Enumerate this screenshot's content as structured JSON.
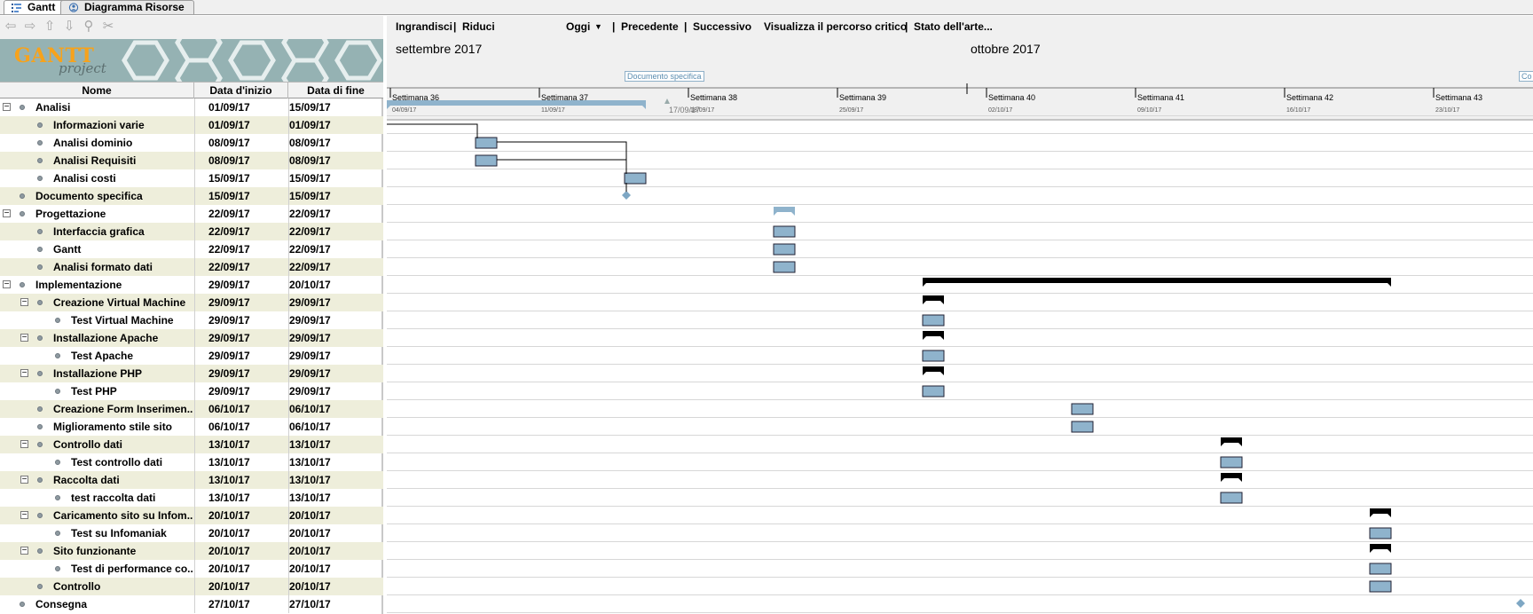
{
  "tabs": [
    {
      "label": "Gantt",
      "icon": "gantt-icon",
      "active": true
    },
    {
      "label": "Diagramma Risorse",
      "icon": "resources-icon",
      "active": false
    }
  ],
  "nav_toolbar": [
    "back-icon",
    "forward-icon",
    "up-icon",
    "down-icon",
    "link-icon",
    "unlink-icon"
  ],
  "logo": {
    "main": "GANTT",
    "sub": "project"
  },
  "columns": {
    "name": "Nome",
    "start": "Data d'inizio",
    "end": "Data di fine"
  },
  "chart_toolbar": {
    "zoom_in": "Ingrandisci",
    "zoom_out": "Riduci",
    "today": "Oggi",
    "previous": "Precedente",
    "next": "Successivo",
    "critical_path": "Visualizza il percorso critico",
    "baseline": "Stato dell'arte...",
    "separator": "|"
  },
  "timeline": {
    "months": [
      "settembre 2017",
      "ottobre 2017"
    ],
    "weeks": [
      {
        "label": "Settimana  36",
        "date": "04/09/17"
      },
      {
        "label": "Settimana  37",
        "date": "11/09/17"
      },
      {
        "label": "Settimana  38",
        "date": "18/09/17"
      },
      {
        "label": "Settimana  39",
        "date": "25/09/17"
      },
      {
        "label": "Settimana  40",
        "date": "02/10/17"
      },
      {
        "label": "Settimana  41",
        "date": "09/10/17"
      },
      {
        "label": "Settimana  42",
        "date": "16/10/17"
      },
      {
        "label": "Settimana  43",
        "date": "23/10/17"
      }
    ],
    "annotations": [
      "Documento specifica",
      "Co"
    ],
    "marker_date": "17/09/17"
  },
  "tasks": [
    {
      "name": "Analisi",
      "start": "01/09/17",
      "end": "15/09/17",
      "level": 0,
      "kind": "summary"
    },
    {
      "name": "Informazioni varie",
      "start": "01/09/17",
      "end": "01/09/17",
      "level": 1,
      "kind": "task"
    },
    {
      "name": "Analisi dominio",
      "start": "08/09/17",
      "end": "08/09/17",
      "level": 1,
      "kind": "task"
    },
    {
      "name": "Analisi Requisiti",
      "start": "08/09/17",
      "end": "08/09/17",
      "level": 1,
      "kind": "task"
    },
    {
      "name": "Analisi costi",
      "start": "15/09/17",
      "end": "15/09/17",
      "level": 1,
      "kind": "task"
    },
    {
      "name": "Documento specifica",
      "start": "15/09/17",
      "end": "15/09/17",
      "level": 0,
      "kind": "milestone"
    },
    {
      "name": "Progettazione",
      "start": "22/09/17",
      "end": "22/09/17",
      "level": 0,
      "kind": "summary"
    },
    {
      "name": "Interfaccia grafica",
      "start": "22/09/17",
      "end": "22/09/17",
      "level": 1,
      "kind": "task"
    },
    {
      "name": "Gantt",
      "start": "22/09/17",
      "end": "22/09/17",
      "level": 1,
      "kind": "task"
    },
    {
      "name": "Analisi formato dati",
      "start": "22/09/17",
      "end": "22/09/17",
      "level": 1,
      "kind": "task"
    },
    {
      "name": "Implementazione",
      "start": "29/09/17",
      "end": "20/10/17",
      "level": 0,
      "kind": "summary"
    },
    {
      "name": "Creazione Virtual Machine",
      "start": "29/09/17",
      "end": "29/09/17",
      "level": 1,
      "kind": "summary"
    },
    {
      "name": "Test Virtual Machine",
      "start": "29/09/17",
      "end": "29/09/17",
      "level": 2,
      "kind": "task"
    },
    {
      "name": "Installazione Apache",
      "start": "29/09/17",
      "end": "29/09/17",
      "level": 1,
      "kind": "summary"
    },
    {
      "name": "Test Apache",
      "start": "29/09/17",
      "end": "29/09/17",
      "level": 2,
      "kind": "task"
    },
    {
      "name": "Installazione PHP",
      "start": "29/09/17",
      "end": "29/09/17",
      "level": 1,
      "kind": "summary"
    },
    {
      "name": "Test PHP",
      "start": "29/09/17",
      "end": "29/09/17",
      "level": 2,
      "kind": "task"
    },
    {
      "name": "Creazione Form Inserimen...",
      "start": "06/10/17",
      "end": "06/10/17",
      "level": 1,
      "kind": "task"
    },
    {
      "name": "Miglioramento stile sito",
      "start": "06/10/17",
      "end": "06/10/17",
      "level": 1,
      "kind": "task"
    },
    {
      "name": "Controllo dati",
      "start": "13/10/17",
      "end": "13/10/17",
      "level": 1,
      "kind": "summary"
    },
    {
      "name": "Test controllo dati",
      "start": "13/10/17",
      "end": "13/10/17",
      "level": 2,
      "kind": "task"
    },
    {
      "name": "Raccolta dati",
      "start": "13/10/17",
      "end": "13/10/17",
      "level": 1,
      "kind": "summary"
    },
    {
      "name": "test raccolta dati",
      "start": "13/10/17",
      "end": "13/10/17",
      "level": 2,
      "kind": "task"
    },
    {
      "name": "Caricamento sito su Infom...",
      "start": "20/10/17",
      "end": "20/10/17",
      "level": 1,
      "kind": "summary"
    },
    {
      "name": "Test su Infomaniak",
      "start": "20/10/17",
      "end": "20/10/17",
      "level": 2,
      "kind": "task"
    },
    {
      "name": "Sito funzionante",
      "start": "20/10/17",
      "end": "20/10/17",
      "level": 1,
      "kind": "summary"
    },
    {
      "name": "Test di performance co...",
      "start": "20/10/17",
      "end": "20/10/17",
      "level": 2,
      "kind": "task"
    },
    {
      "name": "Controllo",
      "start": "20/10/17",
      "end": "20/10/17",
      "level": 1,
      "kind": "task"
    },
    {
      "name": "Consegna",
      "start": "27/10/17",
      "end": "27/10/17",
      "level": 0,
      "kind": "milestone"
    }
  ],
  "colors": {
    "task_bar": "#8fb3cc",
    "summary_bar": "#000000",
    "analysis_summary": "#8fb3cc",
    "row_alt": "#eeeedb",
    "milestone": "#7ea7c4"
  }
}
